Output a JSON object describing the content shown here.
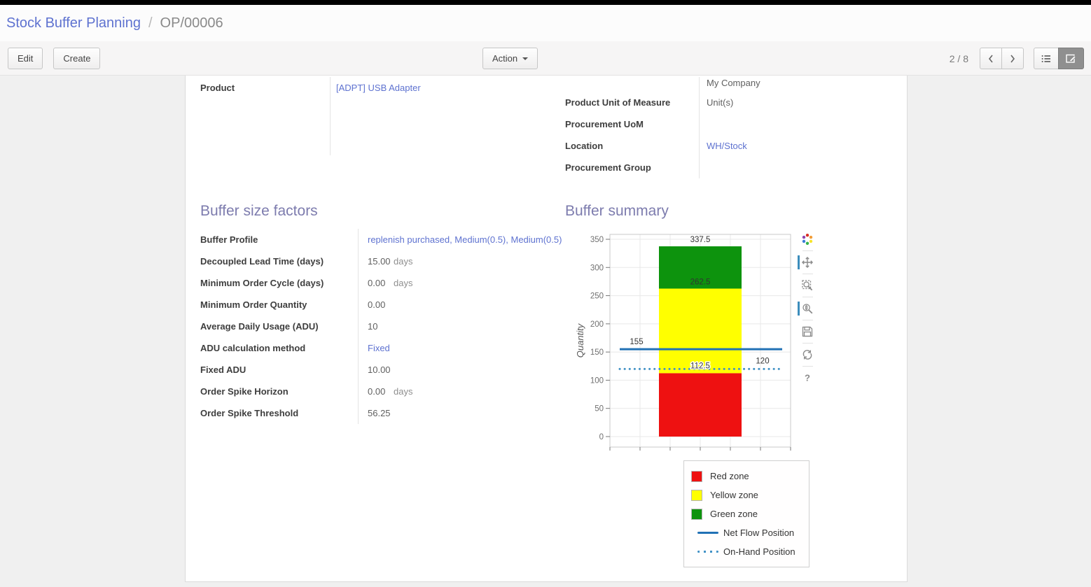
{
  "colors": {
    "link": "#5e72d0",
    "heading": "#7d7cae",
    "topbar": "#000000",
    "active_tool": "#3c8dbc",
    "sheet_bg": "#ffffff",
    "page_bg": "#f0f0f0"
  },
  "breadcrumb": {
    "parent": "Stock Buffer Planning",
    "separator": "/",
    "current": "OP/00006"
  },
  "toolbar": {
    "edit_label": "Edit",
    "create_label": "Create",
    "action_label": "Action",
    "pager": "2 / 8",
    "icons": [
      "chevron-left-icon",
      "chevron-right-icon",
      "list-view-icon",
      "form-view-icon"
    ]
  },
  "form": {
    "product": {
      "label": "Product",
      "value": "[ADPT] USB Adapter"
    },
    "company": {
      "label": "",
      "value": "My Company"
    },
    "uom": {
      "label": "Product Unit of Measure",
      "value": "Unit(s)"
    },
    "procurement_uom": {
      "label": "Procurement UoM",
      "value": ""
    },
    "location": {
      "label": "Location",
      "value": "WH/Stock"
    },
    "procurement_group": {
      "label": "Procurement Group",
      "value": ""
    },
    "sections": {
      "factors": "Buffer size factors",
      "summary": "Buffer summary"
    },
    "factors": [
      {
        "label": "Buffer Profile",
        "value": "replenish purchased, Medium(0.5), Medium(0.5)",
        "link": true
      },
      {
        "label": "Decoupled Lead Time (days)",
        "value": "15.00",
        "unit": "days"
      },
      {
        "label": "Minimum Order Cycle (days)",
        "value": "0.00",
        "unit": "days"
      },
      {
        "label": "Minimum Order Quantity",
        "value": "0.00"
      },
      {
        "label": "Average Daily Usage (ADU)",
        "value": "10"
      },
      {
        "label": "ADU calculation method",
        "value": "Fixed",
        "link": true
      },
      {
        "label": "Fixed ADU",
        "value": "10.00"
      },
      {
        "label": "Order Spike Horizon",
        "value": "0.00",
        "unit": "days"
      },
      {
        "label": "Order Spike Threshold",
        "value": "56.25"
      }
    ]
  },
  "chart_data": {
    "type": "bar",
    "title": "",
    "xlabel": "",
    "ylabel": "Quantity",
    "ylim": [
      0,
      350
    ],
    "ytick_step": 50,
    "x_grid_divisions": 6,
    "grid": true,
    "legend_position": "below-right",
    "zones": [
      {
        "name": "Red zone",
        "from": 0,
        "to": 112.5,
        "color": "#ee1111"
      },
      {
        "name": "Yellow zone",
        "from": 112.5,
        "to": 262.5,
        "color": "#ffff00"
      },
      {
        "name": "Green zone",
        "from": 262.5,
        "to": 337.5,
        "color": "#0d930d"
      }
    ],
    "lines": [
      {
        "name": "Net Flow Position",
        "value": 155,
        "style": "solid",
        "color": "#2171b5"
      },
      {
        "name": "On-Hand Position",
        "value": 120,
        "style": "dotted",
        "color": "#4292c6"
      }
    ],
    "annotations": [
      {
        "text": "337.5",
        "value": 337.5,
        "x": "bar",
        "dy": -6
      },
      {
        "text": "262.5",
        "value": 262.5,
        "x": "bar",
        "dy": -6
      },
      {
        "text": "112.5",
        "value": 112.5,
        "x": "bar",
        "dy": -7,
        "halo": true
      },
      {
        "text": "155",
        "value": 155,
        "x": "left",
        "dy": -7
      },
      {
        "text": "120",
        "value": 120,
        "x": "right",
        "dy": -8
      }
    ]
  },
  "chart_toolbar": {
    "tools": [
      "bokeh-logo",
      "pan",
      "box-zoom",
      "wheel-zoom",
      "save",
      "reset",
      "help"
    ],
    "active": [
      "pan",
      "wheel-zoom"
    ]
  }
}
